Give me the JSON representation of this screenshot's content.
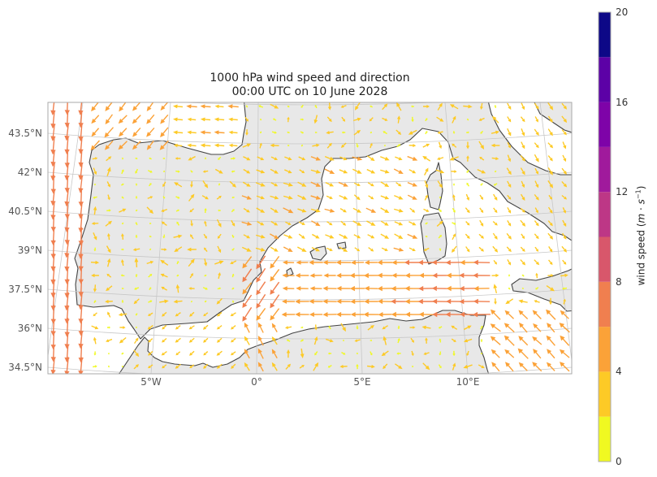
{
  "title": {
    "line1": "1000 hPa wind speed and direction",
    "line2": "00:00 UTC on 10 June 2028"
  },
  "colors": {
    "land": "#e8e8e8",
    "ocean": "#ffffff",
    "coastline": "#444444",
    "gridline": "#c8c8c8",
    "frame": "#aaaaaa"
  },
  "chart_data": {
    "type": "quiver",
    "projection": "conic",
    "lat_ticks": [
      "43.5°N",
      "42°N",
      "40.5°N",
      "39°N",
      "37.5°N",
      "36°N",
      "34.5°N"
    ],
    "lon_ticks": [
      "5°W",
      "0°",
      "5°E",
      "10°E"
    ],
    "extent": {
      "lon": [
        -10,
        15
      ],
      "lat": [
        34.3,
        44.7
      ]
    },
    "grid": true,
    "colorbar": {
      "label": "wind speed (m · s⁻¹)",
      "label_main": "wind speed (",
      "label_m": "m",
      "label_dot": " · ",
      "label_s": "s",
      "label_exp": "−1",
      "label_close": ")",
      "range": [
        0,
        20
      ],
      "ticks": [
        "0",
        "4",
        "8",
        "12",
        "16",
        "20"
      ],
      "bins": [
        0,
        2,
        4,
        6,
        8,
        10,
        12,
        14,
        16,
        18,
        20
      ],
      "bin_colors": [
        "#f0f921",
        "#fdca26",
        "#fba238",
        "#f07f4f",
        "#d8576b",
        "#bd3786",
        "#a01a9c",
        "#7e03a8",
        "#5c01a6",
        "#0d0887"
      ],
      "colormap": "plasma (reversed)"
    }
  }
}
